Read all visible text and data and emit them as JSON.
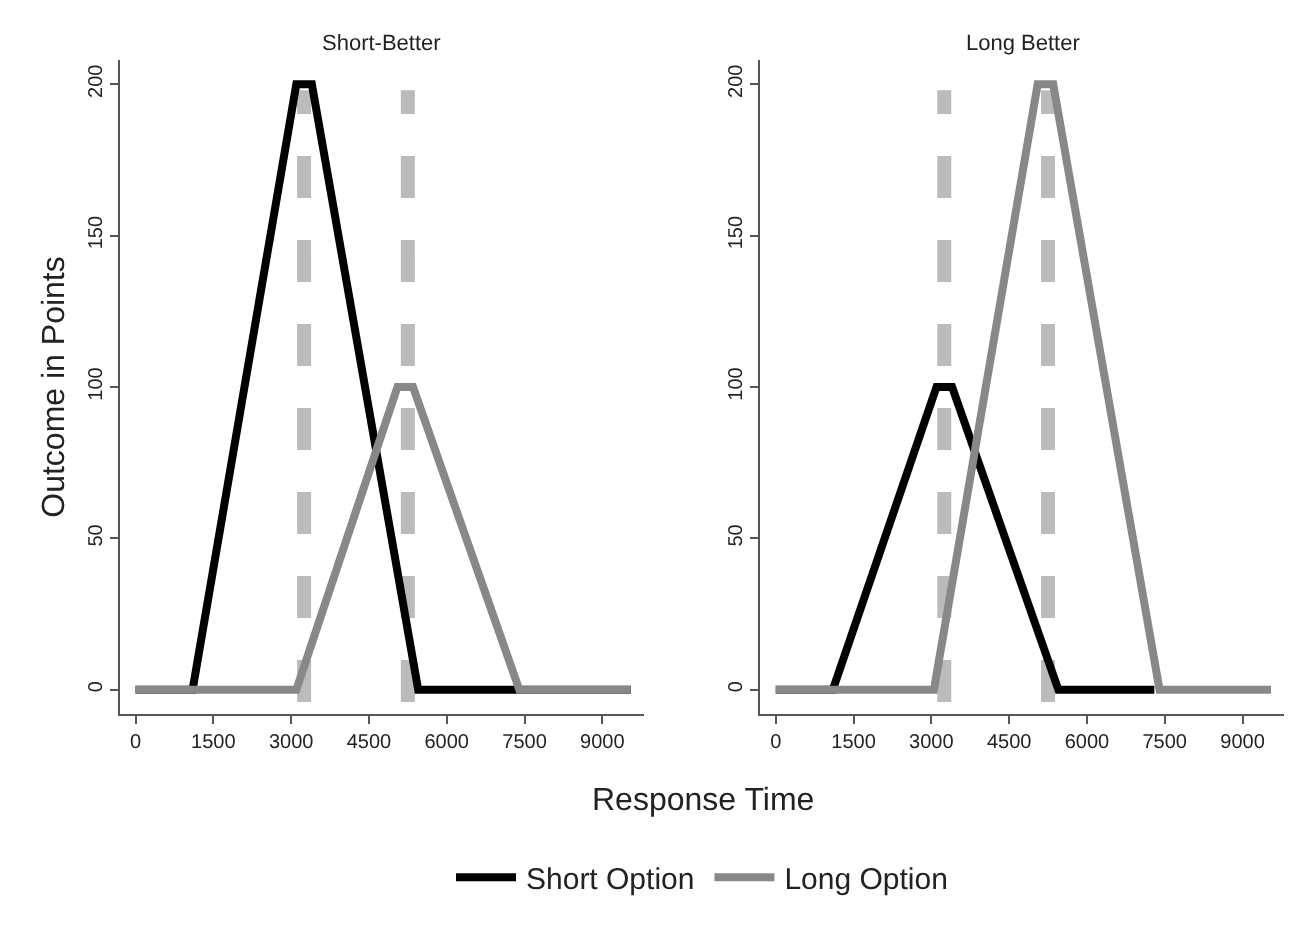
{
  "chart_data": [
    {
      "type": "line",
      "title": "Short-Better",
      "ylabel": "Outcome in Points",
      "xlabel": "Response Time",
      "legend": "bottom",
      "line_style": "solid",
      "marker": "none",
      "grid": false,
      "series": [
        {
          "name": "Short Option",
          "color": "#000000",
          "x": [
            0,
            1100,
            3100,
            3400,
            5450,
            9550
          ],
          "values": [
            0,
            0,
            200,
            200,
            0,
            0
          ]
        },
        {
          "name": "Long Option",
          "color": "#888888",
          "x": [
            0,
            3100,
            5050,
            5350,
            7400,
            9550
          ],
          "values": [
            0,
            0,
            100,
            100,
            0,
            0
          ]
        }
      ],
      "ref_lines": [
        {
          "axis": "x",
          "value": 3250,
          "color": "#bbbbbb",
          "line_style": "dashed"
        },
        {
          "axis": "x",
          "value": 5250,
          "color": "#bbbbbb",
          "line_style": "dashed"
        }
      ],
      "xlim": [
        -300,
        9800
      ],
      "xticks": [
        0,
        1500,
        3000,
        4500,
        6000,
        7500,
        9000
      ],
      "ylim": [
        -8,
        208
      ],
      "yticks": [
        0,
        50,
        100,
        150,
        200
      ]
    },
    {
      "type": "line",
      "title": "Long Better",
      "legend": "bottom",
      "line_style": "solid",
      "marker": "none",
      "grid": false,
      "series": [
        {
          "name": "Short Option",
          "color": "#000000",
          "x": [
            0,
            1100,
            3100,
            3400,
            5450,
            7300
          ],
          "values": [
            0,
            0,
            100,
            100,
            0,
            0
          ]
        },
        {
          "name": "Long Option",
          "color": "#888888",
          "x": [
            0,
            3050,
            5050,
            5350,
            7400,
            9550
          ],
          "values": [
            0,
            0,
            200,
            200,
            0,
            0
          ]
        }
      ],
      "ref_lines": [
        {
          "axis": "x",
          "value": 3250,
          "color": "#bbbbbb",
          "line_style": "dashed"
        },
        {
          "axis": "x",
          "value": 5250,
          "color": "#bbbbbb",
          "line_style": "dashed"
        }
      ],
      "xlim": [
        -300,
        9800
      ],
      "xticks": [
        0,
        1500,
        3000,
        4500,
        6000,
        7500,
        9000
      ],
      "ylim": [
        -8,
        208
      ],
      "yticks": [
        0,
        50,
        100,
        150,
        200
      ]
    }
  ]
}
